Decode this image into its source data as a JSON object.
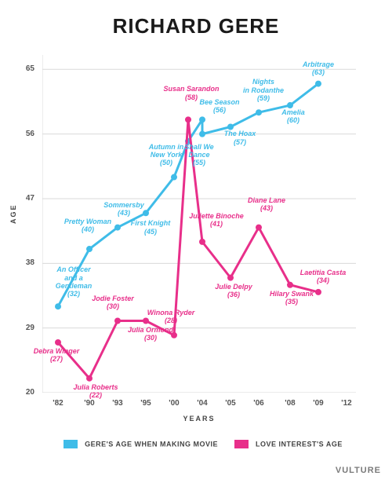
{
  "title": "RICHARD GERE",
  "brand": "VULTURE",
  "colors": {
    "gere": "#3fbce8",
    "love": "#e82f8a",
    "grid": "#d9d9d9",
    "bg": "#ffffff",
    "text": "#444444"
  },
  "axes": {
    "xlabel": "YEARS",
    "ylabel": "AGE",
    "ylim": [
      20,
      67
    ],
    "yticks": [
      20,
      29,
      38,
      47,
      56,
      65
    ],
    "xticks": [
      "'82",
      "'90",
      "'93",
      "'95",
      "'00",
      "'04",
      "'05",
      "'06",
      "'08",
      "'09",
      "'12"
    ],
    "xticks_val": [
      1982,
      1990,
      1993,
      1995,
      2000,
      2004,
      2005,
      2006,
      2008,
      2009,
      2012
    ],
    "xlim": [
      1980,
      2014
    ],
    "x_positions": [
      0.05,
      0.15,
      0.24,
      0.33,
      0.42,
      0.51,
      0.6,
      0.69,
      0.79,
      0.88,
      0.97
    ]
  },
  "series": {
    "gere": {
      "label": "GERE'S AGE WHEN MAKING MOVIE",
      "color": "#3fbce8",
      "points": [
        {
          "xi": 0,
          "y": 32,
          "name": "An Officer and a Gentleman",
          "age": 32,
          "lab_dx": 20,
          "lab_dy": -52
        },
        {
          "xi": 1,
          "y": 40,
          "name": "Pretty Woman",
          "age": 40,
          "lab_dx": -2,
          "lab_dy": -40
        },
        {
          "xi": 2,
          "y": 43,
          "name": "Sommersby",
          "age": 43,
          "lab_dx": 8,
          "lab_dy": -34
        },
        {
          "xi": 3,
          "y": 45,
          "name": "First Knight",
          "age": 45,
          "lab_dx": 6,
          "lab_dy": 8
        },
        {
          "xi": 4,
          "y": 50,
          "name": "Autumn in New York",
          "age": 50,
          "lab_dx": -10,
          "lab_dy": -44
        },
        {
          "xi": 4.5,
          "y": 55,
          "name": "Shall We Dance",
          "age": 55,
          "lab_dx": 14,
          "lab_dy": 2
        },
        {
          "xi": 5,
          "y": 58,
          "name": "Susan Sarandon",
          "age": 58,
          "show": false
        },
        {
          "xi": 5,
          "y": 56,
          "name": "Bee Season",
          "age": 56,
          "lab_dx": 22,
          "lab_dy": -46
        },
        {
          "xi": 6,
          "y": 57,
          "name": "The Hoax",
          "age": 57,
          "lab_dx": 12,
          "lab_dy": 4
        },
        {
          "xi": 7,
          "y": 59,
          "name": "Nights in Rodanthe",
          "age": 59,
          "lab_dx": 6,
          "lab_dy": -44
        },
        {
          "xi": 8,
          "y": 60,
          "name": "Amelia",
          "age": 60,
          "lab_dx": 4,
          "lab_dy": 4
        },
        {
          "xi": 9,
          "y": 63,
          "name": "Arbitrage",
          "age": 63,
          "lab_dx": 0,
          "lab_dy": -30
        }
      ]
    },
    "love": {
      "label": "LOVE INTEREST'S AGE",
      "color": "#e82f8a",
      "points": [
        {
          "xi": 0,
          "y": 27,
          "name": "Debra Winger",
          "age": 27,
          "lab_dx": -2,
          "lab_dy": 6
        },
        {
          "xi": 1,
          "y": 22,
          "name": "Julia Roberts",
          "age": 22,
          "lab_dx": 8,
          "lab_dy": 6
        },
        {
          "xi": 2,
          "y": 30,
          "name": "Jodie Foster",
          "age": 30,
          "lab_dx": -6,
          "lab_dy": -34
        },
        {
          "xi": 3,
          "y": 30,
          "name": "Julia Ormond",
          "age": 30,
          "lab_dx": 6,
          "lab_dy": 6
        },
        {
          "xi": 4,
          "y": 28,
          "name": "Winona Ryder",
          "age": 28,
          "lab_dx": -4,
          "lab_dy": -34
        },
        {
          "xi": 4.5,
          "y": 58,
          "name": "Susan Sarandon",
          "age": 58,
          "lab_dx": 4,
          "lab_dy": -44,
          "color_override": "#e82f8a"
        },
        {
          "xi": 5,
          "y": 41,
          "name": "Juliette Binoche",
          "age": 41,
          "lab_dx": 18,
          "lab_dy": -38
        },
        {
          "xi": 6,
          "y": 36,
          "name": "Julie Delpy",
          "age": 36,
          "lab_dx": 4,
          "lab_dy": 6
        },
        {
          "xi": 7,
          "y": 43,
          "name": "Diane Lane",
          "age": 43,
          "lab_dx": 10,
          "lab_dy": -40
        },
        {
          "xi": 8,
          "y": 35,
          "name": "Hilary Swank",
          "age": 35,
          "lab_dx": 2,
          "lab_dy": 6
        },
        {
          "xi": 9,
          "y": 34,
          "name": "Laetitia Casta",
          "age": 34,
          "lab_dx": 6,
          "lab_dy": -30
        }
      ]
    }
  },
  "legend": [
    {
      "color": "#3fbce8",
      "label": "GERE'S AGE WHEN MAKING MOVIE"
    },
    {
      "color": "#e82f8a",
      "label": "LOVE INTEREST'S AGE"
    }
  ]
}
